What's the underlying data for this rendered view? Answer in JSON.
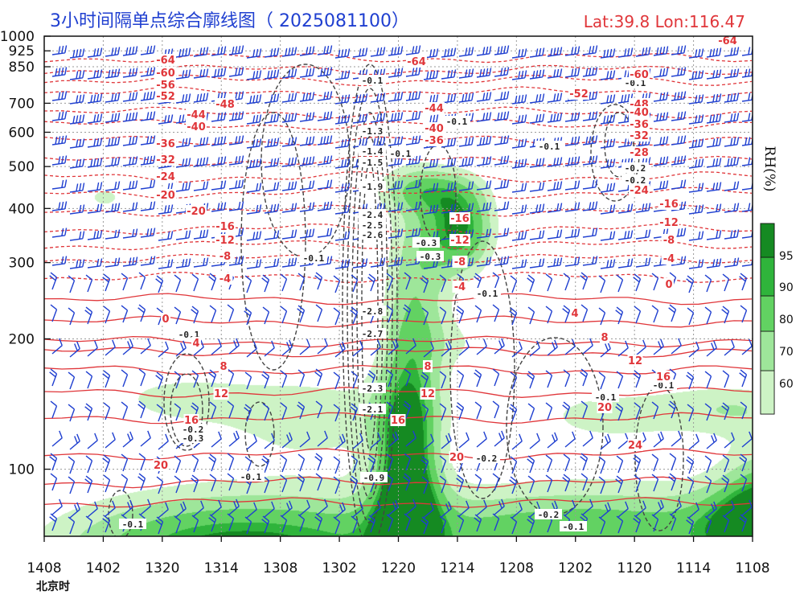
{
  "title": "3小时间隔单点综合廓线图（ 2025081100）",
  "location": "Lat:39.8  Lon:116.47",
  "time_axis_label": "北京时",
  "colors": {
    "title": "#1f3fd0",
    "temperature": "#e0363a",
    "wind_barb": "#1f3fd0",
    "omega_contour": "#444444",
    "rh_60": "#cdf3c5",
    "rh_70": "#9ee69a",
    "rh_80": "#62d262",
    "rh_90": "#2fb43b",
    "rh_95": "#158a22"
  },
  "chart_data": {
    "type": "heatmap",
    "x_ticks": [
      "1408",
      "1402",
      "1320",
      "1314",
      "1308",
      "1302",
      "1220",
      "1214",
      "1208",
      "1202",
      "1120",
      "1114",
      "1108"
    ],
    "y_ticks": [
      100,
      200,
      300,
      400,
      500,
      600,
      700,
      850,
      925,
      1000
    ],
    "y_unit": "hPa",
    "grid": true,
    "colorbar": {
      "label": "RH(%)",
      "ticks": [
        60,
        70,
        80,
        90,
        95
      ],
      "colors": [
        "#cdf3c5",
        "#9ee69a",
        "#62d262",
        "#2fb43b",
        "#158a22"
      ]
    },
    "temperature_labels": [
      "-64",
      "-64",
      "-64",
      "-60",
      "-60",
      "-56",
      "-52",
      "-52",
      "-48",
      "-48",
      "-44",
      "-44",
      "-40",
      "-40",
      "-40",
      "-36",
      "-36",
      "-36",
      "-32",
      "-32",
      "-28",
      "-24",
      "-24",
      "-20",
      "-20",
      "-16",
      "-16",
      "-16",
      "-12",
      "-12",
      "-12",
      "-8",
      "-8",
      "-8",
      "-4",
      "-4",
      "-4",
      "0",
      "0",
      "4",
      "4",
      "8",
      "8",
      "8",
      "12",
      "12",
      "12",
      "16",
      "16",
      "16",
      "20",
      "20",
      "20",
      "24"
    ],
    "omega_labels": [
      "-0.1",
      "-0.1",
      "-0.1",
      "-0.1",
      "-0.1",
      "-0.1",
      "-0.1",
      "-0.1",
      "-0.1",
      "-0.1",
      "-0.1",
      "-0.1",
      "-0.1",
      "-0.2",
      "-0.2",
      "-0.2",
      "-0.2",
      "-0.2",
      "-0.3",
      "-0.3",
      "-0.3",
      "-0.9",
      "-1.3",
      "-1.4",
      "-1.5",
      "-1.9",
      "-2.1",
      "-2.3",
      "-2.4",
      "-2.5",
      "-2.6",
      "-2.7",
      "-2.8"
    ]
  }
}
